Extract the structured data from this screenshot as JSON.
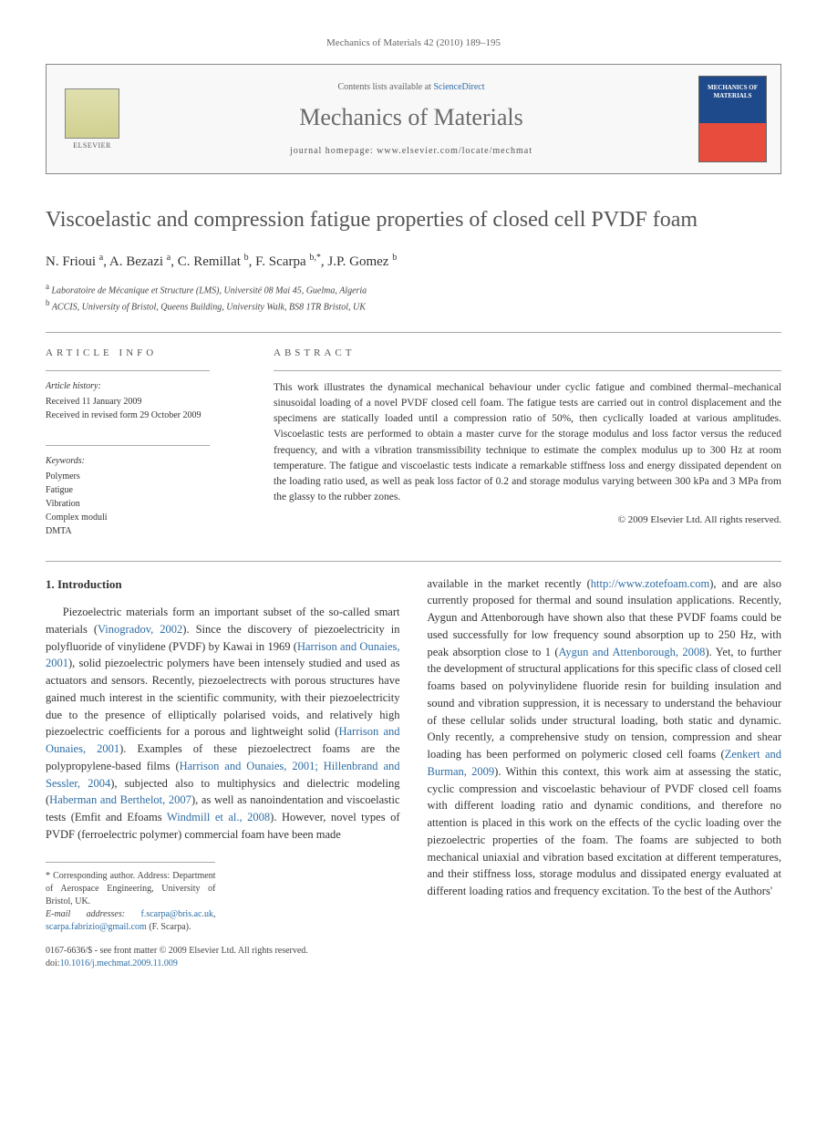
{
  "header_citation": "Mechanics of Materials 42 (2010) 189–195",
  "banner": {
    "elsevier_label": "ELSEVIER",
    "contents_prefix": "Contents lists available at ",
    "contents_link": "ScienceDirect",
    "journal_name": "Mechanics of Materials",
    "homepage_prefix": "journal homepage: ",
    "homepage_url": "www.elsevier.com/locate/mechmat"
  },
  "title": "Viscoelastic and compression fatigue properties of closed cell PVDF foam",
  "authors_html": "N. Frioui <sup>a</sup>, A. Bezazi <sup>a</sup>, C. Remillat <sup>b</sup>, F. Scarpa <sup>b,*</sup>, J.P. Gomez <sup>b</sup>",
  "affiliations": {
    "a": "Laboratoire de Mécanique et Structure (LMS), Université 08 Mai 45, Guelma, Algeria",
    "b": "ACCIS, University of Bristol, Queens Building, University Walk, BS8 1TR Bristol, UK"
  },
  "info": {
    "heading": "ARTICLE INFO",
    "history_label": "Article history:",
    "received": "Received 11 January 2009",
    "revised": "Received in revised form 29 October 2009",
    "keywords_label": "Keywords:",
    "keywords": [
      "Polymers",
      "Fatigue",
      "Vibration",
      "Complex moduli",
      "DMTA"
    ]
  },
  "abstract": {
    "heading": "ABSTRACT",
    "text": "This work illustrates the dynamical mechanical behaviour under cyclic fatigue and combined thermal–mechanical sinusoidal loading of a novel PVDF closed cell foam. The fatigue tests are carried out in control displacement and the specimens are statically loaded until a compression ratio of 50%, then cyclically loaded at various amplitudes. Viscoelastic tests are performed to obtain a master curve for the storage modulus and loss factor versus the reduced frequency, and with a vibration transmissibility technique to estimate the complex modulus up to 300 Hz at room temperature. The fatigue and viscoelastic tests indicate a remarkable stiffness loss and energy dissipated dependent on the loading ratio used, as well as peak loss factor of 0.2 and storage modulus varying between 300 kPa and 3 MPa from the glassy to the rubber zones.",
    "copyright": "© 2009 Elsevier Ltd. All rights reserved."
  },
  "intro": {
    "heading": "1. Introduction",
    "col1_html": "Piezoelectric materials form an important subset of the so-called smart materials (<a href='#'>Vinogradov, 2002</a>). Since the discovery of piezoelectricity in polyfluoride of vinylidene (PVDF) by Kawai in 1969 (<a href='#'>Harrison and Ounaies, 2001</a>), solid piezoelectric polymers have been intensely studied and used as actuators and sensors. Recently, piezoelectrects with porous structures have gained much interest in the scientific community, with their piezoelectricity due to the presence of elliptically polarised voids, and relatively high piezoelectric coefficients for a porous and lightweight solid (<a href='#'>Harrison and Ounaies, 2001</a>). Examples of these piezoelectrect foams are the polypropylene-based films (<a href='#'>Harrison and Ounaies, 2001; Hillenbrand and Sessler, 2004</a>), subjected also to multiphysics and dielectric modeling (<a href='#'>Haberman and Berthelot, 2007</a>), as well as nanoindentation and viscoelastic tests (Emfit and Efoams <a href='#'>Windmill et al., 2008</a>). However, novel types of PVDF (ferroelectric polymer) commercial foam have been made",
    "col2_html": "available in the market recently (<a href='#'>http://www.zotefoam.com</a>), and are also currently proposed for thermal and sound insulation applications. Recently, Aygun and Attenborough have shown also that these PVDF foams could be used successfully for low frequency sound absorption up to 250 Hz, with peak absorption close to 1 (<a href='#'>Aygun and Attenborough, 2008</a>). Yet, to further the development of structural applications for this specific class of closed cell foams based on polyvinylidene fluoride resin for building insulation and sound and vibration suppression, it is necessary to understand the behaviour of these cellular solids under structural loading, both static and dynamic. Only recently, a comprehensive study on tension, compression and shear loading has been performed on polymeric closed cell foams (<a href='#'>Zenkert and Burman, 2009</a>). Within this context, this work aim at assessing the static, cyclic compression and viscoelastic behaviour of PVDF closed cell foams with different loading ratio and dynamic conditions, and therefore no attention is placed in this work on the effects of the cyclic loading over the piezoelectric properties of the foam. The foams are subjected to both mechanical uniaxial and vibration based excitation at different temperatures, and their stiffness loss, storage modulus and dissipated energy evaluated at different loading ratios and frequency excitation. To the best of the Authors'"
  },
  "corresponding": {
    "note": "* Corresponding author. Address: Department of Aerospace Engineering, University of Bristol, UK.",
    "email_label": "E-mail addresses: ",
    "emails_html": "<a href='#'>f.scarpa@bris.ac.uk</a>, <a href='#'>scarpa.fabrizio@gmail.com</a>",
    "email_author": "(F. Scarpa)."
  },
  "footer": {
    "line1": "0167-6636/$ - see front matter © 2009 Elsevier Ltd. All rights reserved.",
    "doi_label": "doi:",
    "doi": "10.1016/j.mechmat.2009.11.009"
  },
  "colors": {
    "link_color": "#2e6da4",
    "text_color": "#333333",
    "muted_color": "#666666",
    "rule_color": "#aaaaaa",
    "journal_blue": "#1e4a8c",
    "journal_red": "#e74c3c"
  }
}
